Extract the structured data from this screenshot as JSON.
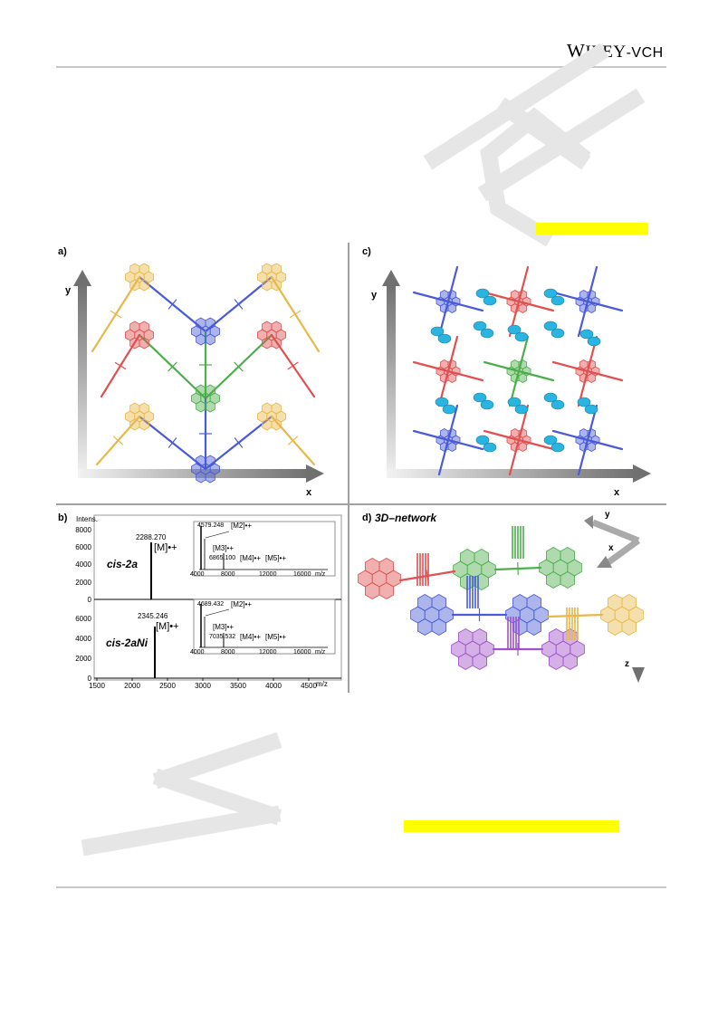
{
  "header": {
    "publisher_lead": "W",
    "publisher_rest": "ILEY",
    "publisher_sep": "-",
    "publisher_vch": "VCH"
  },
  "watermark": {
    "top_letters": "CH",
    "bottom_letter": "W"
  },
  "figure": {
    "panels": {
      "a": {
        "label": "a)",
        "axis_x": "x",
        "axis_y": "y"
      },
      "b": {
        "label": "b)",
        "y_axis_title": "Intens.",
        "x_axis_unit": "m/z",
        "x_ticks": [
          "1500",
          "2000",
          "2500",
          "3000",
          "3500",
          "4000",
          "4500"
        ],
        "top": {
          "compound_label": "cis-2a",
          "peak_value": "2288.270",
          "peak_label": "[M]•+",
          "y_ticks": [
            "8000",
            "6000",
            "4000",
            "2000",
            "0"
          ],
          "inset": {
            "peak_values": [
              "4579.248",
              "6865.100"
            ],
            "ion_labels": [
              "[M2]•+",
              "[M3]•+",
              "[M4]•+",
              "[M5]•+"
            ],
            "x_ticks": [
              "4000",
              "8000",
              "12000",
              "16000",
              "m/z"
            ]
          }
        },
        "bottom": {
          "compound_label": "cis-2aNi",
          "peak_value": "2345.246",
          "peak_label": "[M]•+",
          "y_ticks": [
            "6000",
            "4000",
            "2000",
            "0"
          ],
          "inset": {
            "peak_values": [
              "4689.432",
              "7035.532"
            ],
            "ion_labels": [
              "[M2]•+",
              "[M3]•+",
              "[M4]•+",
              "[M5]•+"
            ],
            "x_ticks": [
              "4000",
              "8000",
              "12000",
              "16000",
              "m/z"
            ]
          }
        }
      },
      "c": {
        "label": "c)",
        "axis_x": "x",
        "axis_y": "y"
      },
      "d": {
        "label": "d)",
        "title": "3D–network",
        "axis_x": "x",
        "axis_y": "y",
        "axis_z": "z"
      }
    },
    "colors": {
      "gold": "#e8b84a",
      "red": "#e05050",
      "blue": "#4a5ad8",
      "green": "#4cae4c",
      "purple": "#a050c8",
      "cyan": "#2ab4e0"
    }
  },
  "highlights": {
    "color": "#ffff00"
  }
}
